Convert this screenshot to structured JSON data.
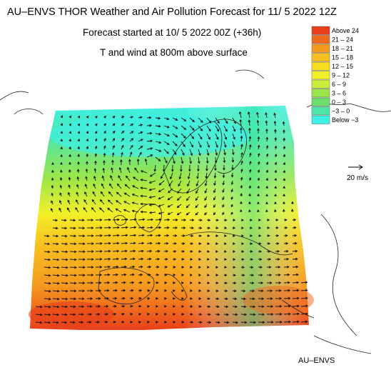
{
  "header": {
    "title": "AU–ENVS THOR Weather and Air Pollution Forecast for 11/ 5 2022  12Z",
    "forecast_start": "Forecast started at 10/ 5 2022  00Z (+36h)",
    "field_description": "T and wind at 800m above surface"
  },
  "legend": {
    "items": [
      {
        "label": "Above   24",
        "color": "#e8401a"
      },
      {
        "label": "21 – 24",
        "color": "#f06a1e"
      },
      {
        "label": "18 – 21",
        "color": "#f59a20"
      },
      {
        "label": "15 – 18",
        "color": "#f8c020"
      },
      {
        "label": "12 – 15",
        "color": "#f8dc22"
      },
      {
        "label": "9 – 12",
        "color": "#f2f028"
      },
      {
        "label": "6 –  9",
        "color": "#c8ee3a"
      },
      {
        "label": "3 –  6",
        "color": "#9ae64a"
      },
      {
        "label": "0 –  3",
        "color": "#6ede6c"
      },
      {
        "label": "−3 –  0",
        "color": "#4ee6a8"
      },
      {
        "label": "Below   −3",
        "color": "#3ef0e6"
      }
    ]
  },
  "wind_scale": {
    "label": "20 m/s"
  },
  "footer": {
    "label": "AU–ENVS"
  }
}
